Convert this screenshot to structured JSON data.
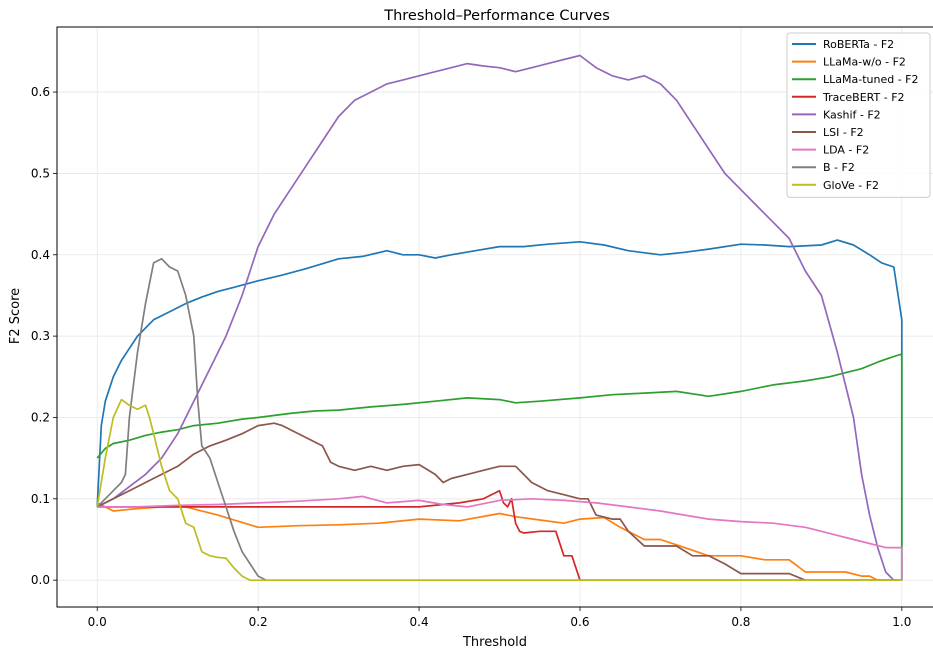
{
  "chart_data": {
    "type": "line",
    "title": "Threshold–Performance Curves",
    "xlabel": "Threshold",
    "ylabel": "F2 Score",
    "xlim": [
      -0.05,
      1.04
    ],
    "ylim": [
      -0.033,
      0.68
    ],
    "xticks": [
      "0.0",
      "0.2",
      "0.4",
      "0.6",
      "0.8",
      "1.0"
    ],
    "yticks": [
      "0.0",
      "0.1",
      "0.2",
      "0.3",
      "0.4",
      "0.5",
      "0.6"
    ],
    "grid": true,
    "legend_position": "top-right",
    "series": [
      {
        "name": "RoBERTa - F2",
        "color": "#1f77b4",
        "x": [
          0,
          0.005,
          0.01,
          0.02,
          0.03,
          0.05,
          0.07,
          0.09,
          0.11,
          0.13,
          0.15,
          0.17,
          0.2,
          0.23,
          0.26,
          0.3,
          0.33,
          0.36,
          0.38,
          0.4,
          0.42,
          0.44,
          0.47,
          0.5,
          0.53,
          0.56,
          0.6,
          0.63,
          0.66,
          0.7,
          0.73,
          0.76,
          0.8,
          0.83,
          0.86,
          0.9,
          0.92,
          0.94,
          0.96,
          0.975,
          0.99,
          1.0,
          1.0
        ],
        "y": [
          0.09,
          0.19,
          0.22,
          0.25,
          0.27,
          0.3,
          0.32,
          0.33,
          0.34,
          0.348,
          0.355,
          0.36,
          0.368,
          0.375,
          0.383,
          0.395,
          0.398,
          0.405,
          0.4,
          0.4,
          0.396,
          0.4,
          0.405,
          0.41,
          0.41,
          0.413,
          0.416,
          0.412,
          0.405,
          0.4,
          0.403,
          0.407,
          0.413,
          0.412,
          0.41,
          0.412,
          0.418,
          0.412,
          0.4,
          0.39,
          0.385,
          0.32,
          0.0
        ]
      },
      {
        "name": "LLaMa-w/o - F2",
        "color": "#ff7f0e",
        "x": [
          0,
          0.01,
          0.02,
          0.05,
          0.08,
          0.11,
          0.15,
          0.2,
          0.25,
          0.3,
          0.35,
          0.4,
          0.45,
          0.5,
          0.52,
          0.55,
          0.58,
          0.6,
          0.63,
          0.65,
          0.68,
          0.7,
          0.73,
          0.76,
          0.8,
          0.83,
          0.86,
          0.88,
          0.9,
          0.93,
          0.95,
          0.96,
          0.97,
          1.0
        ],
        "y": [
          0.095,
          0.09,
          0.085,
          0.088,
          0.09,
          0.09,
          0.08,
          0.065,
          0.067,
          0.068,
          0.07,
          0.075,
          0.073,
          0.082,
          0.078,
          0.074,
          0.07,
          0.075,
          0.077,
          0.065,
          0.05,
          0.05,
          0.04,
          0.03,
          0.03,
          0.025,
          0.025,
          0.01,
          0.01,
          0.01,
          0.005,
          0.005,
          0.0,
          0.0
        ]
      },
      {
        "name": "LLaMa-tuned - F2",
        "color": "#2ca02c",
        "x": [
          0,
          0.01,
          0.02,
          0.04,
          0.06,
          0.08,
          0.1,
          0.12,
          0.15,
          0.18,
          0.2,
          0.24,
          0.27,
          0.3,
          0.34,
          0.38,
          0.42,
          0.46,
          0.5,
          0.52,
          0.55,
          0.6,
          0.64,
          0.68,
          0.72,
          0.76,
          0.8,
          0.84,
          0.88,
          0.91,
          0.93,
          0.95,
          0.97,
          0.99,
          1.0,
          1.0
        ],
        "y": [
          0.15,
          0.162,
          0.168,
          0.172,
          0.178,
          0.182,
          0.185,
          0.19,
          0.193,
          0.198,
          0.2,
          0.205,
          0.208,
          0.209,
          0.213,
          0.216,
          0.22,
          0.224,
          0.222,
          0.218,
          0.22,
          0.224,
          0.228,
          0.23,
          0.232,
          0.226,
          0.232,
          0.24,
          0.245,
          0.25,
          0.255,
          0.26,
          0.268,
          0.275,
          0.278,
          0.0
        ]
      },
      {
        "name": "TraceBERT - F2",
        "color": "#d62728",
        "x": [
          0,
          0.02,
          0.05,
          0.1,
          0.15,
          0.2,
          0.25,
          0.3,
          0.35,
          0.4,
          0.45,
          0.48,
          0.5,
          0.505,
          0.51,
          0.515,
          0.52,
          0.525,
          0.53,
          0.55,
          0.57,
          0.58,
          0.59,
          0.6,
          0.62,
          0.7,
          0.8,
          0.9,
          1.0
        ],
        "y": [
          0.09,
          0.09,
          0.09,
          0.09,
          0.09,
          0.09,
          0.09,
          0.09,
          0.09,
          0.09,
          0.095,
          0.1,
          0.11,
          0.095,
          0.09,
          0.1,
          0.07,
          0.06,
          0.058,
          0.06,
          0.06,
          0.03,
          0.03,
          0.0,
          0.0,
          0.0,
          0.0,
          0.0,
          0.0
        ]
      },
      {
        "name": "Kashif - F2",
        "color": "#9467bd",
        "x": [
          0,
          0.02,
          0.04,
          0.06,
          0.08,
          0.1,
          0.12,
          0.14,
          0.16,
          0.18,
          0.2,
          0.22,
          0.24,
          0.26,
          0.28,
          0.3,
          0.32,
          0.34,
          0.36,
          0.38,
          0.4,
          0.42,
          0.44,
          0.46,
          0.48,
          0.5,
          0.52,
          0.54,
          0.56,
          0.58,
          0.6,
          0.62,
          0.64,
          0.66,
          0.68,
          0.7,
          0.72,
          0.74,
          0.76,
          0.78,
          0.8,
          0.82,
          0.84,
          0.86,
          0.88,
          0.9,
          0.92,
          0.94,
          0.95,
          0.96,
          0.97,
          0.98,
          0.99,
          1.0
        ],
        "y": [
          0.09,
          0.1,
          0.115,
          0.13,
          0.15,
          0.18,
          0.22,
          0.26,
          0.3,
          0.35,
          0.41,
          0.45,
          0.48,
          0.51,
          0.54,
          0.57,
          0.59,
          0.6,
          0.61,
          0.615,
          0.62,
          0.625,
          0.63,
          0.635,
          0.632,
          0.63,
          0.625,
          0.63,
          0.635,
          0.64,
          0.645,
          0.63,
          0.62,
          0.615,
          0.62,
          0.61,
          0.59,
          0.56,
          0.53,
          0.5,
          0.48,
          0.46,
          0.44,
          0.42,
          0.38,
          0.35,
          0.28,
          0.2,
          0.13,
          0.08,
          0.04,
          0.01,
          0.0,
          0.0
        ]
      },
      {
        "name": "LSI - F2",
        "color": "#8c564b",
        "x": [
          0,
          0.02,
          0.04,
          0.06,
          0.08,
          0.1,
          0.12,
          0.14,
          0.16,
          0.18,
          0.2,
          0.22,
          0.23,
          0.25,
          0.28,
          0.29,
          0.3,
          0.32,
          0.34,
          0.36,
          0.38,
          0.4,
          0.42,
          0.43,
          0.44,
          0.46,
          0.48,
          0.5,
          0.52,
          0.53,
          0.54,
          0.56,
          0.58,
          0.6,
          0.61,
          0.62,
          0.64,
          0.65,
          0.66,
          0.68,
          0.7,
          0.72,
          0.74,
          0.76,
          0.78,
          0.8,
          0.82,
          0.84,
          0.86,
          0.88,
          0.9,
          1.0
        ],
        "y": [
          0.09,
          0.1,
          0.11,
          0.12,
          0.13,
          0.14,
          0.155,
          0.165,
          0.172,
          0.18,
          0.19,
          0.193,
          0.19,
          0.18,
          0.165,
          0.145,
          0.14,
          0.135,
          0.14,
          0.135,
          0.14,
          0.142,
          0.13,
          0.12,
          0.125,
          0.13,
          0.135,
          0.14,
          0.14,
          0.13,
          0.12,
          0.11,
          0.105,
          0.1,
          0.1,
          0.08,
          0.075,
          0.075,
          0.06,
          0.042,
          0.042,
          0.042,
          0.03,
          0.03,
          0.02,
          0.008,
          0.008,
          0.008,
          0.008,
          0.0,
          0.0,
          0.0
        ]
      },
      {
        "name": "LDA - F2",
        "color": "#e377c2",
        "x": [
          0,
          0.05,
          0.1,
          0.15,
          0.2,
          0.25,
          0.3,
          0.33,
          0.36,
          0.4,
          0.43,
          0.46,
          0.5,
          0.54,
          0.58,
          0.62,
          0.66,
          0.7,
          0.73,
          0.76,
          0.8,
          0.84,
          0.88,
          0.9,
          0.92,
          0.94,
          0.96,
          0.98,
          0.99,
          1.0,
          1.0
        ],
        "y": [
          0.09,
          0.09,
          0.092,
          0.093,
          0.095,
          0.097,
          0.1,
          0.103,
          0.095,
          0.098,
          0.093,
          0.09,
          0.098,
          0.1,
          0.098,
          0.095,
          0.09,
          0.085,
          0.08,
          0.075,
          0.072,
          0.07,
          0.065,
          0.06,
          0.055,
          0.05,
          0.045,
          0.04,
          0.04,
          0.04,
          0.0
        ]
      },
      {
        "name": "B - F2",
        "color": "#7f7f7f",
        "x": [
          0,
          0.01,
          0.02,
          0.03,
          0.035,
          0.04,
          0.05,
          0.06,
          0.07,
          0.08,
          0.09,
          0.1,
          0.11,
          0.12,
          0.125,
          0.13,
          0.14,
          0.15,
          0.16,
          0.17,
          0.18,
          0.19,
          0.2,
          0.21,
          0.22,
          0.3,
          0.5,
          0.8,
          1.0
        ],
        "y": [
          0.09,
          0.1,
          0.11,
          0.12,
          0.13,
          0.2,
          0.28,
          0.34,
          0.39,
          0.395,
          0.385,
          0.38,
          0.35,
          0.3,
          0.22,
          0.165,
          0.15,
          0.12,
          0.09,
          0.06,
          0.035,
          0.02,
          0.005,
          0.0,
          0.0,
          0.0,
          0.0,
          0.0,
          0.0
        ]
      },
      {
        "name": "GloVe - F2",
        "color": "#bcbd22",
        "x": [
          0,
          0.01,
          0.02,
          0.03,
          0.04,
          0.05,
          0.06,
          0.065,
          0.07,
          0.08,
          0.09,
          0.1,
          0.11,
          0.12,
          0.13,
          0.14,
          0.15,
          0.16,
          0.17,
          0.18,
          0.19,
          0.2,
          0.4,
          0.6,
          0.8,
          1.0
        ],
        "y": [
          0.09,
          0.15,
          0.2,
          0.222,
          0.215,
          0.21,
          0.215,
          0.2,
          0.18,
          0.14,
          0.11,
          0.1,
          0.07,
          0.065,
          0.035,
          0.03,
          0.028,
          0.027,
          0.015,
          0.005,
          0.0,
          0.0,
          0.0,
          0.0,
          0.0,
          0.0
        ]
      }
    ]
  }
}
